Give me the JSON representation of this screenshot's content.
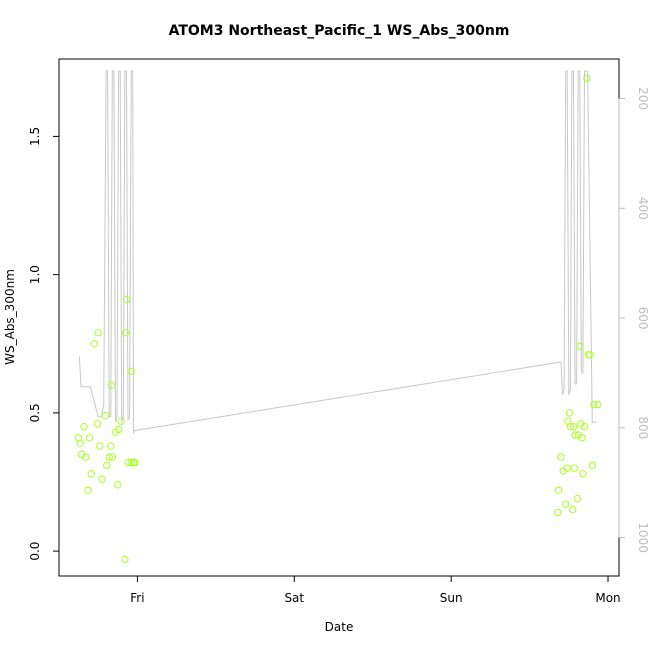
{
  "chart_data": {
    "type": "scatter",
    "title": "ATOM3 Northeast_Pacific_1 WS_Abs_300nm",
    "xlabel": "Date",
    "ylabel": "WS_Abs_300nm",
    "x_ticks": [
      "Fri",
      "Sat",
      "Sun",
      "Mon"
    ],
    "y_ticks": [
      "0.0",
      "0.5",
      "1.0",
      "1.5"
    ],
    "y2_ticks": [
      "200",
      "400",
      "600",
      "800",
      "1000"
    ],
    "xlim": [
      -0.5,
      3.07
    ],
    "ylim": [
      -0.09,
      1.78
    ],
    "y2lim": [
      1070,
      128
    ],
    "y2_reversed": true,
    "grid": false,
    "colors": {
      "points": "#aaff22",
      "line": "#c8c8c8",
      "axis": "#000000",
      "secondary_axis": "#bdbdbd"
    },
    "series": [
      {
        "marker": "circle-open",
        "axis": "left",
        "x": [
          -0.375,
          -0.365,
          -0.355,
          -0.34,
          -0.33,
          -0.315,
          -0.305,
          -0.295,
          -0.275,
          -0.255,
          -0.25,
          -0.24,
          -0.225,
          -0.205,
          -0.195,
          -0.18,
          -0.17,
          -0.165,
          -0.16,
          -0.14,
          -0.125,
          -0.12,
          -0.105,
          -0.08,
          -0.075,
          -0.07,
          -0.06,
          -0.04,
          -0.04,
          -0.025,
          -0.025,
          -0.015,
          2.68,
          2.685,
          2.7,
          2.715,
          2.73,
          2.74,
          2.745,
          2.755,
          2.76,
          2.775,
          2.78,
          2.785,
          2.79,
          2.805,
          2.81,
          2.82,
          2.825,
          2.835,
          2.84,
          2.85,
          2.865,
          2.875,
          2.885,
          2.9,
          2.91,
          2.935
        ],
        "y": [
          0.41,
          0.39,
          0.35,
          0.45,
          0.34,
          0.22,
          0.41,
          0.28,
          0.75,
          0.46,
          0.79,
          0.38,
          0.26,
          0.49,
          0.31,
          0.34,
          0.38,
          0.6,
          0.34,
          0.43,
          0.24,
          0.44,
          0.47,
          -0.03,
          0.79,
          0.91,
          0.32,
          0.65,
          0.32,
          0.32,
          0.32,
          0.32,
          0.14,
          0.22,
          0.34,
          0.29,
          0.17,
          0.3,
          0.47,
          0.5,
          0.45,
          0.15,
          0.45,
          0.3,
          0.42,
          0.19,
          0.42,
          0.74,
          0.46,
          0.41,
          0.28,
          0.45,
          1.71,
          0.71,
          0.71,
          0.31,
          0.53,
          0.53
        ]
      },
      {
        "type": "line",
        "axis": "right",
        "x": [
          -0.37,
          -0.36,
          -0.34,
          -0.3,
          -0.25,
          -0.23,
          -0.215,
          -0.2,
          -0.19,
          -0.18,
          -0.17,
          -0.16,
          -0.15,
          -0.14,
          -0.13,
          -0.12,
          -0.11,
          -0.1,
          -0.09,
          -0.08,
          -0.07,
          -0.06,
          -0.05,
          -0.04,
          -0.03,
          -0.025,
          -0.02,
          2.7,
          2.71,
          2.72,
          2.73,
          2.74,
          2.75,
          2.76,
          2.77,
          2.78,
          2.79,
          2.8,
          2.81,
          2.82,
          2.83,
          2.84,
          2.85,
          2.87,
          2.9,
          2.93
        ],
        "y": [
          670,
          725,
          725,
          725,
          780,
          780,
          760,
          150,
          150,
          780,
          780,
          150,
          150,
          790,
          780,
          150,
          150,
          790,
          780,
          150,
          150,
          785,
          780,
          150,
          150,
          810,
          805,
          680,
          740,
          730,
          150,
          150,
          740,
          730,
          150,
          150,
          720,
          720,
          150,
          150,
          700,
          700,
          150,
          150,
          790,
          790
        ]
      }
    ]
  }
}
